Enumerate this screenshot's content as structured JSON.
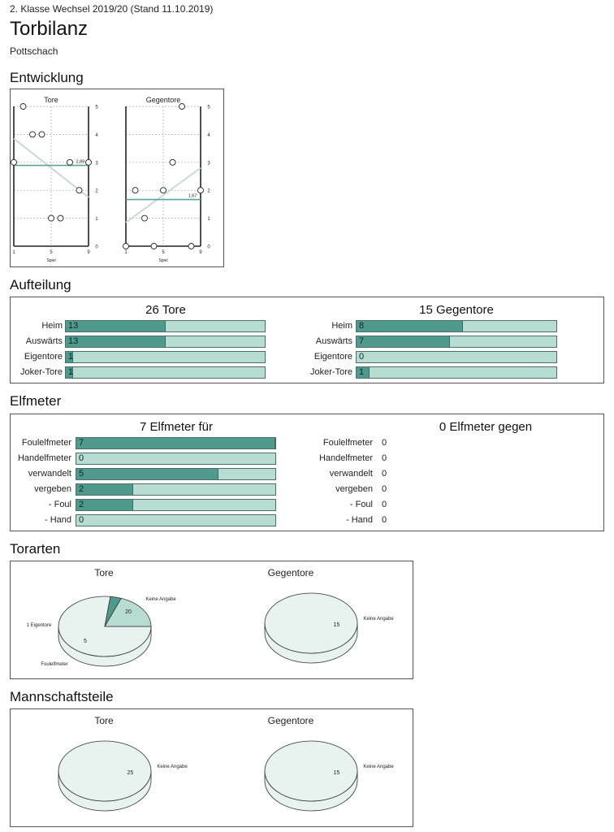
{
  "header": {
    "league": "2. Klasse Wechsel 2019/20 (Stand 11.10.2019)",
    "title": "Torbilanz",
    "team": "Pottschach"
  },
  "sections": {
    "entwicklung": "Entwicklung",
    "aufteilung": "Aufteilung",
    "elfmeter": "Elfmeter",
    "torarten": "Torarten",
    "mannschaftsteile": "Mannschaftsteile"
  },
  "colors": {
    "fill_dark": "#4f9a8c",
    "fill_light": "#b7ddd3",
    "pie_light": "#e8f3ef",
    "trend": "#c7dcd6",
    "mean": "#5aa596"
  },
  "chart_data": [
    {
      "id": "entwicklung-tore",
      "type": "scatter",
      "title": "Tore",
      "xlabel": "Spiel",
      "x_ticks": [
        "1",
        "5",
        "9"
      ],
      "y_ticks": [
        "0",
        "1",
        "2",
        "3",
        "4",
        "5"
      ],
      "xlim": [
        1,
        9
      ],
      "ylim": [
        0,
        5
      ],
      "points": [
        [
          1,
          3
        ],
        [
          2,
          5
        ],
        [
          3,
          4
        ],
        [
          4,
          4
        ],
        [
          5,
          1
        ],
        [
          6,
          1
        ],
        [
          7,
          3
        ],
        [
          8,
          2
        ],
        [
          9,
          3
        ]
      ],
      "mean": 2.89,
      "mean_label": "2,89",
      "trend": [
        [
          1,
          3.85
        ],
        [
          9,
          1.75
        ]
      ]
    },
    {
      "id": "entwicklung-gegentore",
      "type": "scatter",
      "title": "Gegentore",
      "xlabel": "Spiel",
      "x_ticks": [
        "1",
        "5",
        "9"
      ],
      "y_ticks": [
        "0",
        "1",
        "2",
        "3",
        "4",
        "5"
      ],
      "xlim": [
        1,
        9
      ],
      "ylim": [
        0,
        5
      ],
      "points": [
        [
          1,
          0
        ],
        [
          2,
          2
        ],
        [
          3,
          1
        ],
        [
          4,
          0
        ],
        [
          5,
          2
        ],
        [
          6,
          3
        ],
        [
          7,
          5
        ],
        [
          8,
          0
        ],
        [
          9,
          2
        ]
      ],
      "mean": 1.67,
      "mean_label": "1,67",
      "trend": [
        [
          1,
          0.85
        ],
        [
          9,
          2.8
        ]
      ]
    },
    {
      "id": "aufteilung-tore",
      "type": "bar",
      "title": "26 Tore",
      "categories": [
        "Heim",
        "Auswärts",
        "Eigentore",
        "Joker-Tore"
      ],
      "values": [
        13,
        13,
        1,
        1
      ],
      "max": 26
    },
    {
      "id": "aufteilung-gegentore",
      "type": "bar",
      "title": "15 Gegentore",
      "categories": [
        "Heim",
        "Auswärts",
        "Eigentore",
        "Joker-Tore"
      ],
      "values": [
        8,
        7,
        0,
        1
      ],
      "max": 15
    },
    {
      "id": "elfmeter-fuer",
      "type": "bar",
      "title": "7 Elfmeter für",
      "categories": [
        "Foulelfmeter",
        "Handelfmeter",
        "verwandelt",
        "vergeben",
        "- Foul",
        "- Hand"
      ],
      "values": [
        7,
        0,
        5,
        2,
        2,
        0
      ],
      "max": 7
    },
    {
      "id": "elfmeter-gegen",
      "type": "table",
      "title": "0 Elfmeter gegen",
      "categories": [
        "Foulelfmeter",
        "Handelfmeter",
        "verwandelt",
        "vergeben",
        "- Foul",
        "- Hand"
      ],
      "values": [
        0,
        0,
        0,
        0,
        0,
        0
      ]
    },
    {
      "id": "torarten-tore",
      "type": "pie",
      "title": "Tore",
      "slices": [
        {
          "label": "Keine Angabe",
          "value": 20
        },
        {
          "label": "Eigentore",
          "value": 1
        },
        {
          "label": "Foulelfmeter",
          "value": 5
        }
      ]
    },
    {
      "id": "torarten-gegentore",
      "type": "pie",
      "title": "Gegentore",
      "slices": [
        {
          "label": "Keine Angabe",
          "value": 15
        }
      ]
    },
    {
      "id": "mannschaftsteile-tore",
      "type": "pie",
      "title": "Tore",
      "slices": [
        {
          "label": "Keine Angabe",
          "value": 25
        }
      ]
    },
    {
      "id": "mannschaftsteile-gegentore",
      "type": "pie",
      "title": "Gegentore",
      "slices": [
        {
          "label": "Keine Angabe",
          "value": 15
        }
      ]
    }
  ]
}
